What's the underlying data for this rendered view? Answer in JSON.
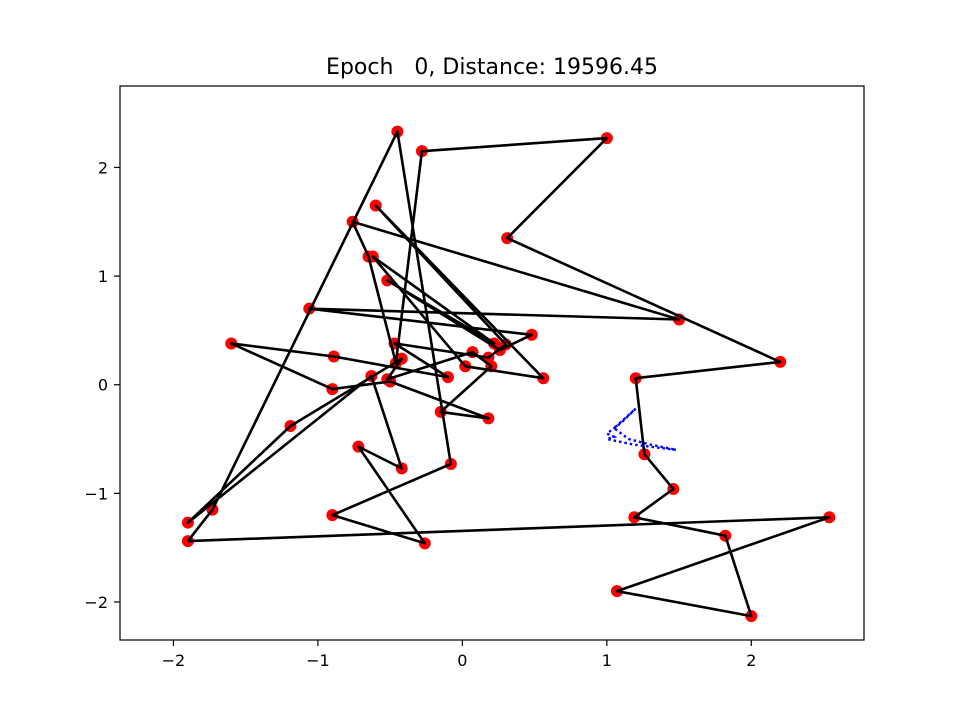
{
  "chart_data": {
    "type": "scatter",
    "title": "Epoch   0, Distance: 19596.45",
    "xlabel": "",
    "ylabel": "",
    "xlim": [
      -2.37,
      2.78
    ],
    "ylim": [
      -2.35,
      2.75
    ],
    "xticks": [
      -2,
      -1,
      0,
      1,
      2
    ],
    "xtick_labels": [
      "−2",
      "−1",
      "0",
      "1",
      "2"
    ],
    "yticks": [
      -2,
      -1,
      0,
      1,
      2
    ],
    "ytick_labels": [
      "−2",
      "−1",
      "0",
      "1",
      "2"
    ],
    "grid": false,
    "colors": {
      "cities": "#ff0000",
      "tour": "#000000",
      "net": "#0000ff"
    },
    "cities": {
      "x": [
        -1.9,
        -1.73,
        -0.45,
        -0.08,
        -0.9,
        -0.26,
        -0.72,
        -0.42,
        -0.63,
        -1.9,
        -1.19,
        -0.42,
        -0.52,
        0.07,
        0.2,
        -0.15,
        0.18,
        -0.5,
        -0.9,
        -1.6,
        -0.89,
        -0.1,
        -0.47,
        0.18,
        0.3,
        -0.6,
        0.56,
        0.02,
        -0.62,
        0.22,
        -0.52,
        0.26,
        0.48,
        -1.06,
        1.5,
        -0.76,
        -0.65,
        -0.46,
        -0.28,
        1.0,
        0.31,
        2.2,
        1.2,
        1.26,
        1.46,
        1.19,
        1.82,
        2.0,
        1.07,
        2.54
      ],
      "y": [
        -1.44,
        -1.15,
        2.33,
        -0.73,
        -1.2,
        -1.46,
        -0.57,
        -0.77,
        0.08,
        -1.27,
        -0.38,
        0.24,
        0.05,
        0.3,
        0.17,
        -0.25,
        -0.31,
        0.03,
        -0.04,
        0.38,
        0.26,
        0.07,
        0.38,
        0.25,
        0.37,
        1.65,
        0.06,
        0.17,
        1.18,
        0.38,
        0.96,
        0.32,
        0.46,
        0.7,
        0.6,
        1.5,
        1.18,
        0.2,
        2.15,
        2.27,
        1.35,
        0.21,
        0.06,
        -0.64,
        -0.96,
        -1.22,
        -1.39,
        -2.13,
        -1.9,
        -1.22
      ]
    },
    "tour_order": [
      0,
      1,
      2,
      3,
      4,
      5,
      6,
      7,
      8,
      9,
      10,
      11,
      12,
      13,
      14,
      15,
      16,
      17,
      18,
      19,
      20,
      21,
      22,
      23,
      24,
      25,
      26,
      27,
      28,
      29,
      30,
      31,
      32,
      33,
      34,
      35,
      36,
      37,
      38,
      39,
      40,
      41,
      42,
      43,
      44,
      45,
      46,
      47,
      48,
      49,
      0
    ],
    "elastic_net": {
      "x": [
        1.2,
        1.1,
        1.0,
        1.05,
        1.0,
        1.18,
        1.48,
        1.3,
        1.15,
        1.05,
        1.2
      ],
      "y": [
        -0.22,
        -0.35,
        -0.45,
        -0.48,
        -0.5,
        -0.55,
        -0.6,
        -0.55,
        -0.5,
        -0.4,
        -0.22
      ]
    }
  }
}
